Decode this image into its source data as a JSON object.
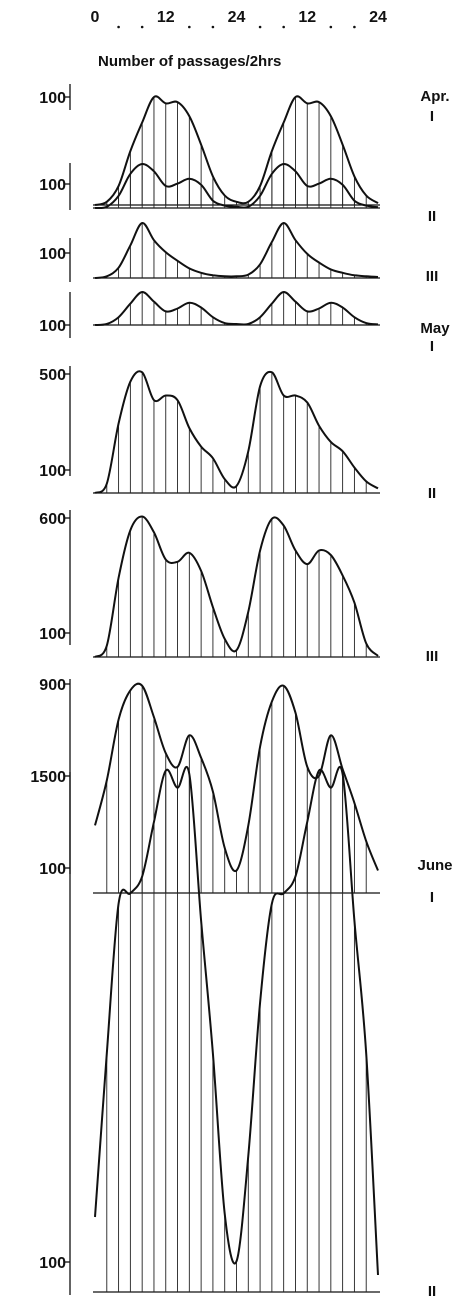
{
  "figure": {
    "ylabel": "Number of passages/2hrs",
    "xticks_top": [
      "0",
      "12",
      "24",
      "12",
      "24"
    ]
  },
  "chart_data": [
    {
      "type": "area",
      "month": "Apr.",
      "period": "I",
      "ytick_label": "100",
      "ytick_value": 100,
      "ylim": [
        0,
        170
      ],
      "x": [
        0,
        2,
        4,
        6,
        8,
        10,
        12,
        14,
        16,
        18,
        20,
        22,
        24,
        26,
        28,
        30,
        32,
        34,
        36,
        38,
        40,
        42,
        44,
        46,
        48
      ],
      "values": [
        0,
        5,
        30,
        85,
        130,
        170,
        160,
        162,
        140,
        95,
        45,
        15,
        5,
        5,
        30,
        85,
        130,
        170,
        160,
        162,
        140,
        95,
        45,
        15,
        3
      ]
    },
    {
      "type": "area",
      "month": "",
      "period": "II",
      "ytick_label": "100",
      "ytick_value": 100,
      "ylim": [
        0,
        180
      ],
      "x": [
        0,
        2,
        4,
        6,
        8,
        10,
        12,
        14,
        16,
        18,
        20,
        22,
        24,
        26,
        28,
        30,
        32,
        34,
        36,
        38,
        40,
        42,
        44,
        46,
        48
      ],
      "values": [
        0,
        5,
        50,
        140,
        180,
        150,
        90,
        100,
        120,
        95,
        30,
        10,
        5,
        5,
        50,
        140,
        180,
        150,
        90,
        100,
        120,
        95,
        30,
        10,
        3
      ]
    },
    {
      "type": "area",
      "month": "",
      "period": "III",
      "ytick_label": "100",
      "ytick_value": 100,
      "ylim": [
        0,
        160
      ],
      "x": [
        0,
        2,
        4,
        6,
        8,
        10,
        12,
        14,
        16,
        18,
        20,
        22,
        24,
        26,
        28,
        30,
        32,
        34,
        36,
        38,
        40,
        42,
        44,
        46,
        48
      ],
      "values": [
        0,
        5,
        30,
        95,
        160,
        110,
        75,
        50,
        28,
        15,
        8,
        5,
        5,
        10,
        40,
        105,
        160,
        110,
        70,
        45,
        25,
        15,
        8,
        5,
        3
      ]
    },
    {
      "type": "area",
      "month": "May",
      "period": "I",
      "ytick_label": "100",
      "ytick_value": 100,
      "ylim": [
        0,
        170
      ],
      "x": [
        0,
        2,
        4,
        6,
        8,
        10,
        12,
        14,
        16,
        18,
        20,
        22,
        24,
        26,
        28,
        30,
        32,
        34,
        36,
        38,
        40,
        42,
        44,
        46,
        48
      ],
      "values": [
        0,
        5,
        40,
        110,
        170,
        120,
        70,
        85,
        115,
        90,
        40,
        10,
        5,
        5,
        40,
        110,
        170,
        120,
        70,
        85,
        115,
        90,
        40,
        10,
        3
      ]
    },
    {
      "type": "area",
      "month": "",
      "period": "II",
      "ytick_label": "500",
      "ytick_value": 500,
      "ylim": [
        0,
        530
      ],
      "x": [
        0,
        2,
        4,
        6,
        8,
        10,
        12,
        14,
        16,
        18,
        20,
        22,
        24,
        26,
        28,
        30,
        32,
        34,
        36,
        38,
        40,
        42,
        44,
        46,
        48
      ],
      "values": [
        0,
        40,
        300,
        480,
        520,
        400,
        420,
        400,
        280,
        200,
        150,
        60,
        30,
        180,
        460,
        520,
        420,
        420,
        390,
        290,
        220,
        180,
        110,
        50,
        20
      ]
    },
    {
      "type": "area",
      "month": "",
      "period": "III",
      "ytick_label": "600",
      "ytick_value": 600,
      "ylim": [
        0,
        640
      ],
      "x": [
        0,
        2,
        4,
        6,
        8,
        10,
        12,
        14,
        16,
        18,
        20,
        22,
        24,
        26,
        28,
        30,
        32,
        34,
        36,
        38,
        40,
        42,
        44,
        46,
        48
      ],
      "values": [
        0,
        50,
        350,
        560,
        620,
        550,
        430,
        420,
        460,
        380,
        220,
        80,
        30,
        200,
        470,
        610,
        580,
        470,
        410,
        470,
        450,
        360,
        240,
        60,
        5
      ]
    },
    {
      "type": "area",
      "month": "June",
      "period": "I",
      "ytick_label": "900",
      "ytick_value": 900,
      "ylim": [
        0,
        950
      ],
      "x": [
        0,
        2,
        4,
        6,
        8,
        10,
        12,
        14,
        16,
        18,
        20,
        22,
        24,
        26,
        28,
        30,
        32,
        34,
        36,
        38,
        40,
        42,
        44,
        46,
        48
      ],
      "values": [
        300,
        500,
        770,
        900,
        920,
        780,
        620,
        560,
        700,
        600,
        450,
        200,
        100,
        300,
        650,
        850,
        920,
        800,
        560,
        520,
        700,
        550,
        400,
        230,
        100
      ]
    },
    {
      "type": "area",
      "month": "",
      "period": "II",
      "ytick_label": "1500",
      "ytick_value": 1500,
      "ylim": [
        0,
        1570
      ],
      "x": [
        0,
        2,
        4,
        6,
        8,
        10,
        12,
        14,
        16,
        18,
        20,
        22,
        24,
        26,
        28,
        30,
        32,
        34,
        36,
        38,
        40,
        42,
        44,
        46,
        48
      ],
      "values": [
        220,
        700,
        1140,
        1170,
        1220,
        1380,
        1530,
        1480,
        1520,
        1090,
        700,
        230,
        90,
        400,
        850,
        1140,
        1170,
        1220,
        1380,
        1530,
        1480,
        1520,
        1090,
        700,
        50
      ]
    }
  ]
}
